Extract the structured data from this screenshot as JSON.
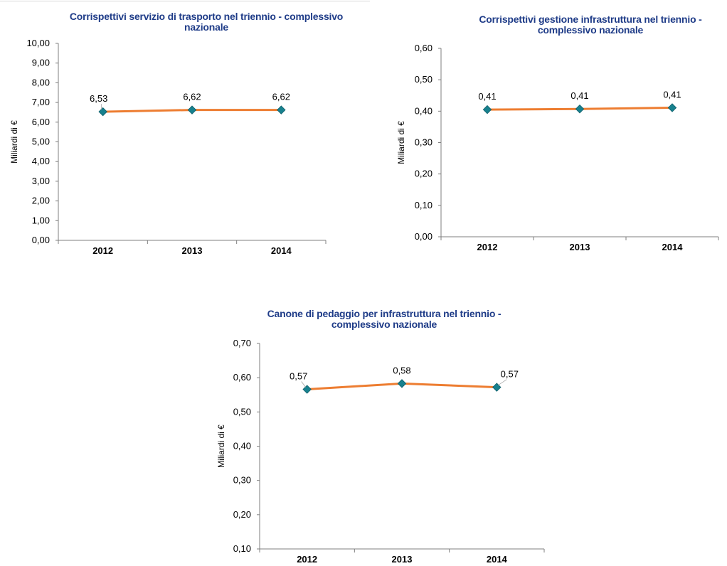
{
  "colors": {
    "line": "#ed7d31",
    "marker": "#17818e",
    "marker_stroke": "#0f5f6a",
    "title": "#1f3c88",
    "axis": "#7f7f7f",
    "text": "#000000"
  },
  "chart_data": [
    {
      "type": "line",
      "title": "Corrispettivi servizio di trasporto nel triennio - complessivo nazionale",
      "title_lines": [
        "Corrispettivi servizio di trasporto nel triennio - complessivo",
        "nazionale"
      ],
      "ylabel": "Miliardi di €",
      "xlabel": "",
      "categories": [
        "2012",
        "2013",
        "2014"
      ],
      "yticks": [
        "0,00",
        "1,00",
        "2,00",
        "3,00",
        "4,00",
        "5,00",
        "6,00",
        "7,00",
        "8,00",
        "9,00",
        "10,00"
      ],
      "ylim": [
        0,
        10
      ],
      "series": [
        {
          "values": [
            6.53,
            6.62,
            6.62
          ],
          "labels": [
            "6,53",
            "6,62",
            "6,62"
          ]
        }
      ],
      "grid": false,
      "legend": "none"
    },
    {
      "type": "line",
      "title": "Corrispettivi gestione infrastruttura nel triennio - complessivo nazionale",
      "title_lines": [
        "Corrispettivi gestione infrastruttura nel triennio -",
        "complessivo nazionale"
      ],
      "ylabel": "Miliardi di €",
      "xlabel": "",
      "categories": [
        "2012",
        "2013",
        "2014"
      ],
      "yticks": [
        "0,00",
        "0,10",
        "0,20",
        "0,30",
        "0,40",
        "0,50",
        "0,60"
      ],
      "ylim": [
        0,
        0.6
      ],
      "series": [
        {
          "values": [
            0.405,
            0.407,
            0.411
          ],
          "labels": [
            "0,41",
            "0,41",
            "0,41"
          ]
        }
      ],
      "grid": false,
      "legend": "none"
    },
    {
      "type": "line",
      "title": "Canone di pedaggio per infrastruttura nel triennio - complessivo nazionale",
      "title_lines": [
        "Canone di pedaggio per infrastruttura nel triennio -",
        "complessivo nazionale"
      ],
      "ylabel": "Miliardi di €",
      "xlabel": "",
      "categories": [
        "2012",
        "2013",
        "2014"
      ],
      "yticks": [
        "0,10",
        "0,20",
        "0,30",
        "0,40",
        "0,50",
        "0,60",
        "0,70"
      ],
      "ylim": [
        0.1,
        0.7
      ],
      "series": [
        {
          "values": [
            0.566,
            0.583,
            0.572
          ],
          "labels": [
            "0,57",
            "0,58",
            "0,57"
          ]
        }
      ],
      "grid": false,
      "legend": "none"
    }
  ]
}
